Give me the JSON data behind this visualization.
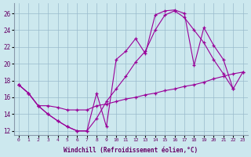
{
  "xlabel": "Windchill (Refroidissement éolien,°C)",
  "bg_color": "#cce8ee",
  "line_color": "#990099",
  "grid_color": "#99bbcc",
  "xlim": [
    -0.5,
    23.5
  ],
  "ylim": [
    11.5,
    27.2
  ],
  "xticks": [
    0,
    1,
    2,
    3,
    4,
    5,
    6,
    7,
    8,
    9,
    10,
    11,
    12,
    13,
    14,
    15,
    16,
    17,
    18,
    19,
    20,
    21,
    22,
    23
  ],
  "yticks": [
    12,
    14,
    16,
    18,
    20,
    22,
    24,
    26
  ],
  "line1_x": [
    0,
    1,
    2,
    3,
    4,
    5,
    6,
    7,
    8,
    9,
    10,
    11,
    12,
    13,
    14,
    15,
    16,
    17,
    18,
    19,
    20,
    21,
    22
  ],
  "line1_y": [
    17.5,
    16.5,
    15.0,
    14.0,
    13.2,
    12.5,
    12.0,
    12.0,
    16.5,
    12.5,
    20.5,
    21.5,
    23.0,
    21.2,
    25.8,
    26.3,
    26.4,
    26.0,
    19.8,
    24.3,
    22.2,
    20.5,
    17.0
  ],
  "line2_x": [
    0,
    1,
    2,
    3,
    4,
    5,
    6,
    7,
    8,
    9,
    10,
    11,
    12,
    13,
    14,
    15,
    16,
    17,
    18,
    19,
    20,
    21,
    22,
    23
  ],
  "line2_y": [
    17.5,
    16.5,
    15.0,
    15.0,
    14.8,
    14.5,
    14.5,
    14.5,
    15.0,
    15.2,
    15.5,
    15.8,
    16.0,
    16.3,
    16.5,
    16.8,
    17.0,
    17.3,
    17.5,
    17.8,
    18.2,
    18.5,
    18.8,
    19.0
  ],
  "line3_x": [
    0,
    1,
    2,
    3,
    4,
    5,
    6,
    7,
    8,
    9,
    10,
    11,
    12,
    13,
    14,
    15,
    16,
    17,
    18,
    19,
    20,
    21,
    22,
    23
  ],
  "line3_y": [
    17.5,
    16.5,
    15.0,
    14.0,
    13.2,
    12.5,
    12.0,
    12.0,
    13.5,
    15.5,
    17.0,
    18.5,
    20.2,
    21.5,
    24.0,
    25.8,
    26.3,
    25.5,
    24.0,
    22.5,
    20.5,
    18.8,
    17.0,
    19.0
  ]
}
